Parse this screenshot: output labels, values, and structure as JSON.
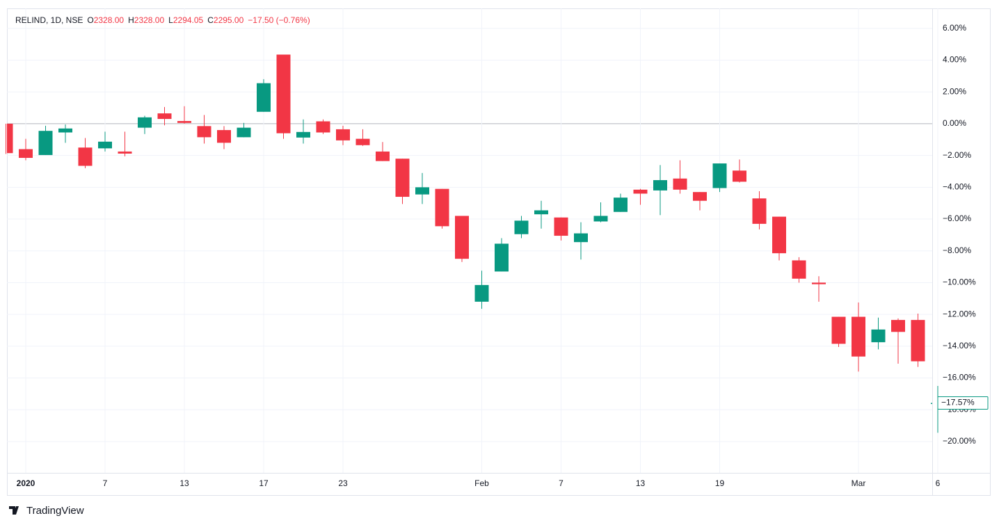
{
  "chart_data": {
    "type": "candlestick",
    "header": {
      "symbol": "RELIND, 1D, NSE",
      "ohlc": [
        {
          "label": "O",
          "value": "2328.00"
        },
        {
          "label": "H",
          "value": "2328.00"
        },
        {
          "label": "L",
          "value": "2294.05"
        },
        {
          "label": "C",
          "value": "2295.00"
        }
      ],
      "change": "−17.50 (−0.76%)"
    },
    "categories": [
      null,
      "2020",
      null,
      null,
      null,
      "7",
      null,
      null,
      null,
      "13",
      null,
      null,
      null,
      "17",
      null,
      null,
      null,
      "23",
      null,
      null,
      null,
      null,
      null,
      null,
      "Feb",
      null,
      null,
      null,
      "7",
      null,
      null,
      null,
      "13",
      null,
      null,
      null,
      "19",
      null,
      null,
      null,
      null,
      null,
      null,
      "Mar",
      null,
      null,
      null,
      "6"
    ],
    "open": [
      0,
      -1.6,
      -1.97,
      -0.55,
      -1.5,
      -1.55,
      -1.75,
      -0.25,
      0.65,
      0.17,
      -0.15,
      -0.4,
      -0.85,
      0.75,
      4.35,
      -0.87,
      0.15,
      -0.35,
      -0.95,
      -1.75,
      -2.2,
      -4.45,
      -4.1,
      -5.8,
      -11.2,
      -9.3,
      -6.95,
      -5.7,
      -5.9,
      -7.45,
      -6.15,
      -5.55,
      -4.15,
      -4.2,
      -3.45,
      -4.3,
      -4.05,
      -2.95,
      -4.7,
      -5.85,
      -8.6,
      -10.0,
      -12.15,
      -12.15,
      -13.75,
      -12.35,
      -12.35,
      -17.6
    ],
    "high": [
      0,
      -0.95,
      -0.13,
      -0.05,
      -0.9,
      -0.5,
      -0.5,
      0.5,
      1.05,
      1.1,
      0.55,
      -0.15,
      0.05,
      2.8,
      4.35,
      0.27,
      0.27,
      -0.13,
      -0.35,
      -1.15,
      -2.2,
      -3.1,
      -4.1,
      -5.8,
      -9.25,
      -7.2,
      -5.8,
      -4.85,
      -5.9,
      -6.2,
      -4.95,
      -4.4,
      -4.1,
      -2.6,
      -2.3,
      -4.3,
      -2.5,
      -2.25,
      -4.25,
      -5.85,
      -8.4,
      -9.6,
      -12.15,
      -11.25,
      -12.2,
      -12.25,
      -11.95,
      -16.5
    ],
    "low": [
      -1.9,
      -2.3,
      -1.97,
      -1.2,
      -2.8,
      -1.75,
      -2.05,
      -0.65,
      -0.1,
      0,
      -1.25,
      -1.6,
      -0.85,
      0.75,
      -0.95,
      -1.25,
      -0.65,
      -1.35,
      -1.4,
      -2.35,
      -5.05,
      -5.05,
      -6.6,
      -8.7,
      -11.65,
      -9.3,
      -7.2,
      -6.6,
      -7.35,
      -8.55,
      -6.2,
      -5.55,
      -5.1,
      -5.75,
      -4.4,
      -5.45,
      -4.3,
      -3.7,
      -6.65,
      -8.6,
      -10.0,
      -11.2,
      -14.05,
      -15.6,
      -14.2,
      -15.1,
      -15.3,
      -19.45
    ],
    "close": [
      -1.85,
      -2.15,
      -0.45,
      -0.3,
      -2.65,
      -1.13,
      -1.88,
      0.4,
      0.3,
      0.05,
      -0.85,
      -1.2,
      -0.25,
      2.55,
      -0.6,
      -0.52,
      -0.55,
      -1.05,
      -1.35,
      -2.35,
      -4.6,
      -4.0,
      -6.45,
      -8.5,
      -10.15,
      -7.55,
      -6.1,
      -5.45,
      -7.05,
      -6.9,
      -5.8,
      -4.65,
      -4.4,
      -3.55,
      -4.15,
      -4.85,
      -2.5,
      -3.65,
      -6.3,
      -8.15,
      -9.75,
      -10.1,
      -13.85,
      -14.65,
      -12.95,
      -13.1,
      -14.95,
      -17.57
    ],
    "up_color": "#089981",
    "down_color": "#f23645",
    "ylim": [
      -21.97,
      7.26
    ],
    "yticks": [
      {
        "value": 6,
        "label": "6.00%"
      },
      {
        "value": 4,
        "label": "4.00%"
      },
      {
        "value": 2,
        "label": "2.00%"
      },
      {
        "value": 0,
        "label": "0.00%"
      },
      {
        "value": -2,
        "label": "−2.00%"
      },
      {
        "value": -4,
        "label": "−4.00%"
      },
      {
        "value": -6,
        "label": "−6.00%"
      },
      {
        "value": -8,
        "label": "−8.00%"
      },
      {
        "value": -10,
        "label": "−10.00%"
      },
      {
        "value": -12,
        "label": "−12.00%"
      },
      {
        "value": -14,
        "label": "−14.00%"
      },
      {
        "value": -16,
        "label": "−16.00%"
      },
      {
        "value": -18,
        "label": "−18.00%"
      },
      {
        "value": -20,
        "label": "−20.00%"
      }
    ],
    "last_price": {
      "value": -17.57,
      "label": "−17.57%"
    },
    "grid": true,
    "footer": "TradingView"
  }
}
